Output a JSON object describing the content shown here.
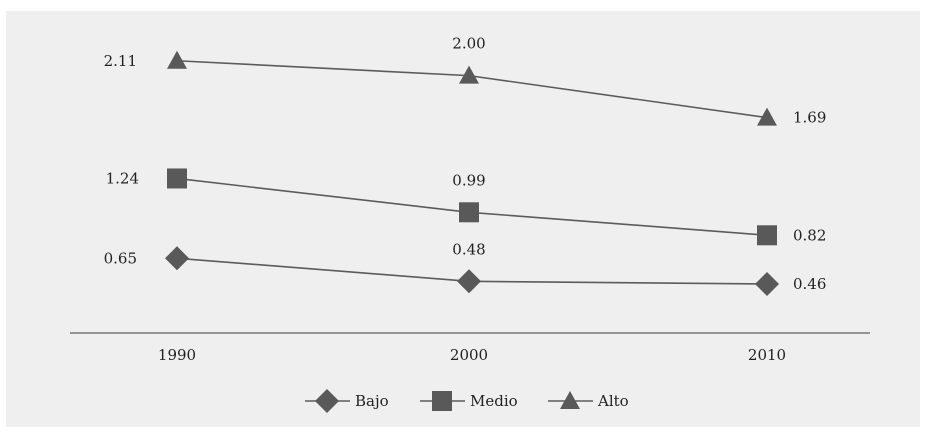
{
  "chart_data": {
    "type": "line",
    "categories": [
      "1990",
      "2000",
      "2010"
    ],
    "series": [
      {
        "name": "Bajo",
        "marker": "diamond",
        "values": [
          0.65,
          0.48,
          0.46
        ],
        "labels": [
          "0.65",
          "0.48",
          "0.46"
        ]
      },
      {
        "name": "Medio",
        "marker": "square",
        "values": [
          1.24,
          0.99,
          0.82
        ],
        "labels": [
          "1.24",
          "0.99",
          "0.82"
        ]
      },
      {
        "name": "Alto",
        "marker": "triangle",
        "values": [
          2.11,
          2.0,
          1.69
        ],
        "labels": [
          "2.11",
          "2.00",
          "1.69"
        ]
      }
    ],
    "title": "",
    "xlabel": "",
    "ylabel": "",
    "grid": false,
    "legend": "bottom-center",
    "colors": {
      "line": "#5b5b5b",
      "marker": "#595959",
      "background": "#efeff0",
      "axis": "#3a3a3a"
    }
  }
}
